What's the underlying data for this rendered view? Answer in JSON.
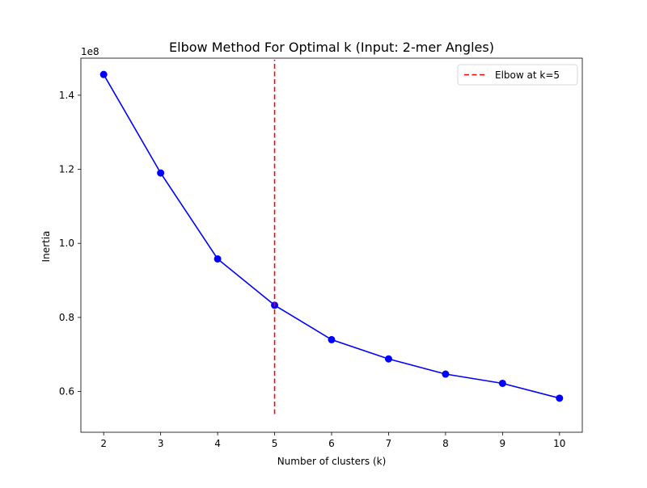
{
  "chart_data": {
    "type": "line",
    "title": "Elbow Method For Optimal k (Input: 2-mer Angles)",
    "xlabel": "Number of clusters (k)",
    "ylabel": "Inertia",
    "y_offset_label": "1e8",
    "y_scale_factor": 100000000,
    "x": [
      2,
      3,
      4,
      5,
      6,
      7,
      8,
      9,
      10
    ],
    "series": [
      {
        "name": "",
        "values": [
          145600000,
          119000000,
          95800000,
          83300000,
          74000000,
          68800000,
          64700000,
          62200000,
          58200000
        ],
        "color": "#0000ff",
        "marker": "circle"
      }
    ],
    "xlim": [
      1.6,
      10.4
    ],
    "ylim": [
      49000000,
      150000000
    ],
    "x_ticks": [
      2,
      3,
      4,
      5,
      6,
      7,
      8,
      9,
      10
    ],
    "x_tick_labels": [
      "2",
      "3",
      "4",
      "5",
      "6",
      "7",
      "8",
      "9",
      "10"
    ],
    "y_ticks": [
      60000000,
      80000000,
      100000000,
      120000000,
      140000000
    ],
    "y_tick_labels": [
      "0.6",
      "0.8",
      "1.0",
      "1.2",
      "1.4"
    ],
    "vline": {
      "x": 5,
      "y_from": 53900000,
      "y_to": 149600000,
      "color": "#ff0000",
      "style": "dashed"
    },
    "legend": {
      "placement": "top-right",
      "entries": [
        "Elbow at k=5"
      ]
    },
    "grid": false
  }
}
